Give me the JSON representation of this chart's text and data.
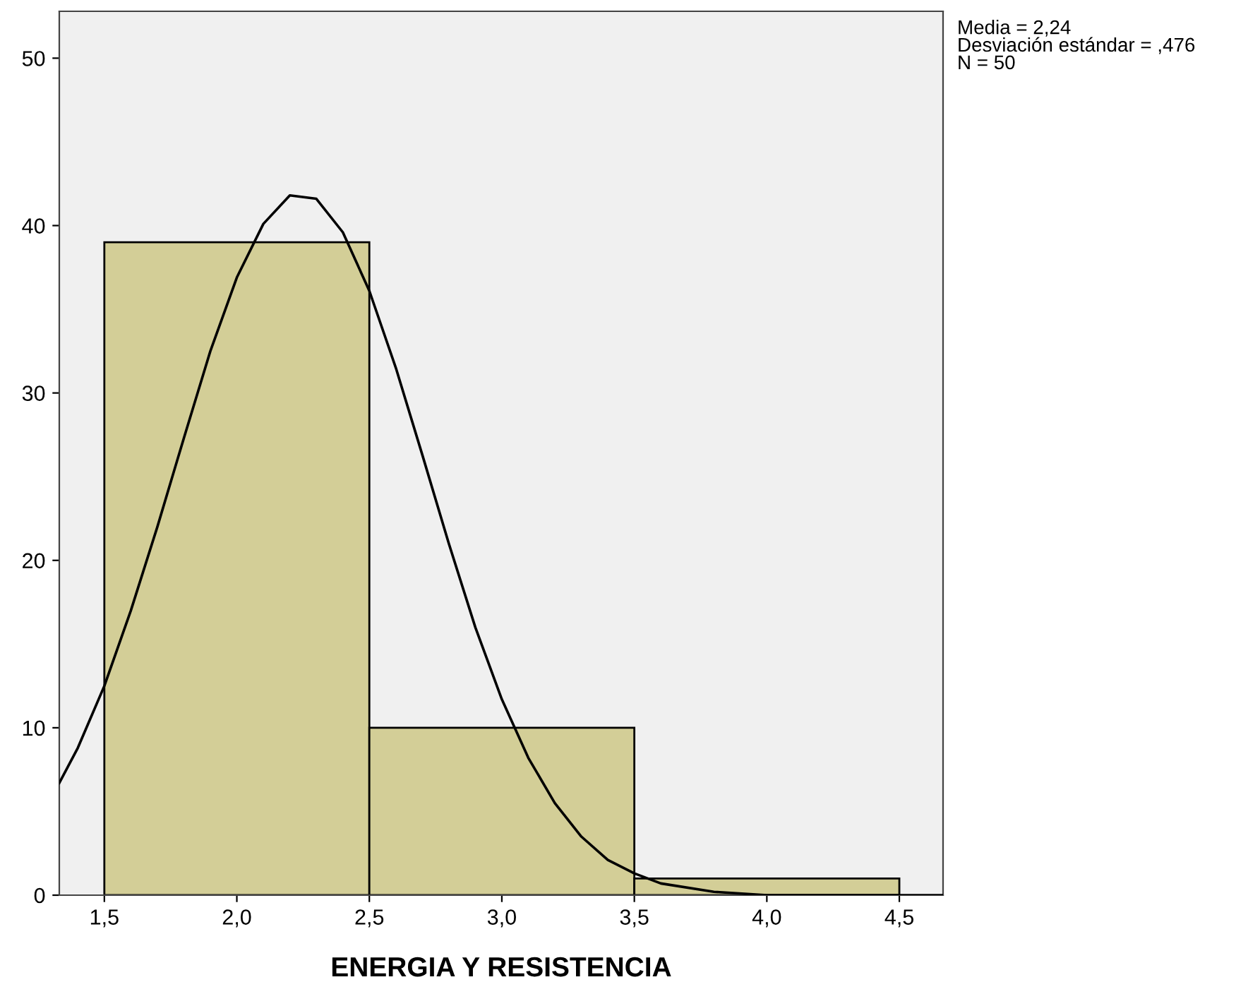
{
  "chart_data": {
    "type": "histogram",
    "xlabel": "ENERGIA Y RESISTENCIA",
    "bins": [
      1.5,
      2.5,
      3.5,
      4.5
    ],
    "values": [
      39,
      10,
      1
    ],
    "color": "#d3ce97",
    "series": [
      {
        "type": "line",
        "color": "#000000",
        "x": [
          1.33,
          1.4,
          1.5,
          1.6,
          1.7,
          1.8,
          1.9,
          2.0,
          2.1,
          2.2,
          2.3,
          2.4,
          2.5,
          2.6,
          2.7,
          2.8,
          2.9,
          3.0,
          3.1,
          3.2,
          3.3,
          3.4,
          3.5,
          3.6,
          3.8,
          4.0,
          4.2,
          4.66
        ],
        "values": [
          6.7,
          8.8,
          12.5,
          17.0,
          22.0,
          27.3,
          32.5,
          36.9,
          40.1,
          41.8,
          41.6,
          39.6,
          36.1,
          31.5,
          26.3,
          21.0,
          16.0,
          11.7,
          8.2,
          5.5,
          3.5,
          2.1,
          1.3,
          0.7,
          0.2,
          0.0,
          0.0,
          0.0
        ]
      }
    ],
    "xlim": [
      1.33,
      4.665
    ],
    "ylim": [
      0,
      52.8
    ],
    "xticks": [
      {
        "value": 1.5,
        "label": "1,5"
      },
      {
        "value": 2.0,
        "label": "2,0"
      },
      {
        "value": 2.5,
        "label": "2,5"
      },
      {
        "value": 3.0,
        "label": "3,0"
      },
      {
        "value": 3.5,
        "label": "3,5"
      },
      {
        "value": 4.0,
        "label": "4,0"
      },
      {
        "value": 4.5,
        "label": "4,5"
      }
    ],
    "yticks": [
      0,
      10,
      20,
      30,
      40,
      50
    ],
    "grid": false,
    "annotations": [
      "Media = 2,24\nDesviación estándar = ,476\nN = 50"
    ]
  }
}
